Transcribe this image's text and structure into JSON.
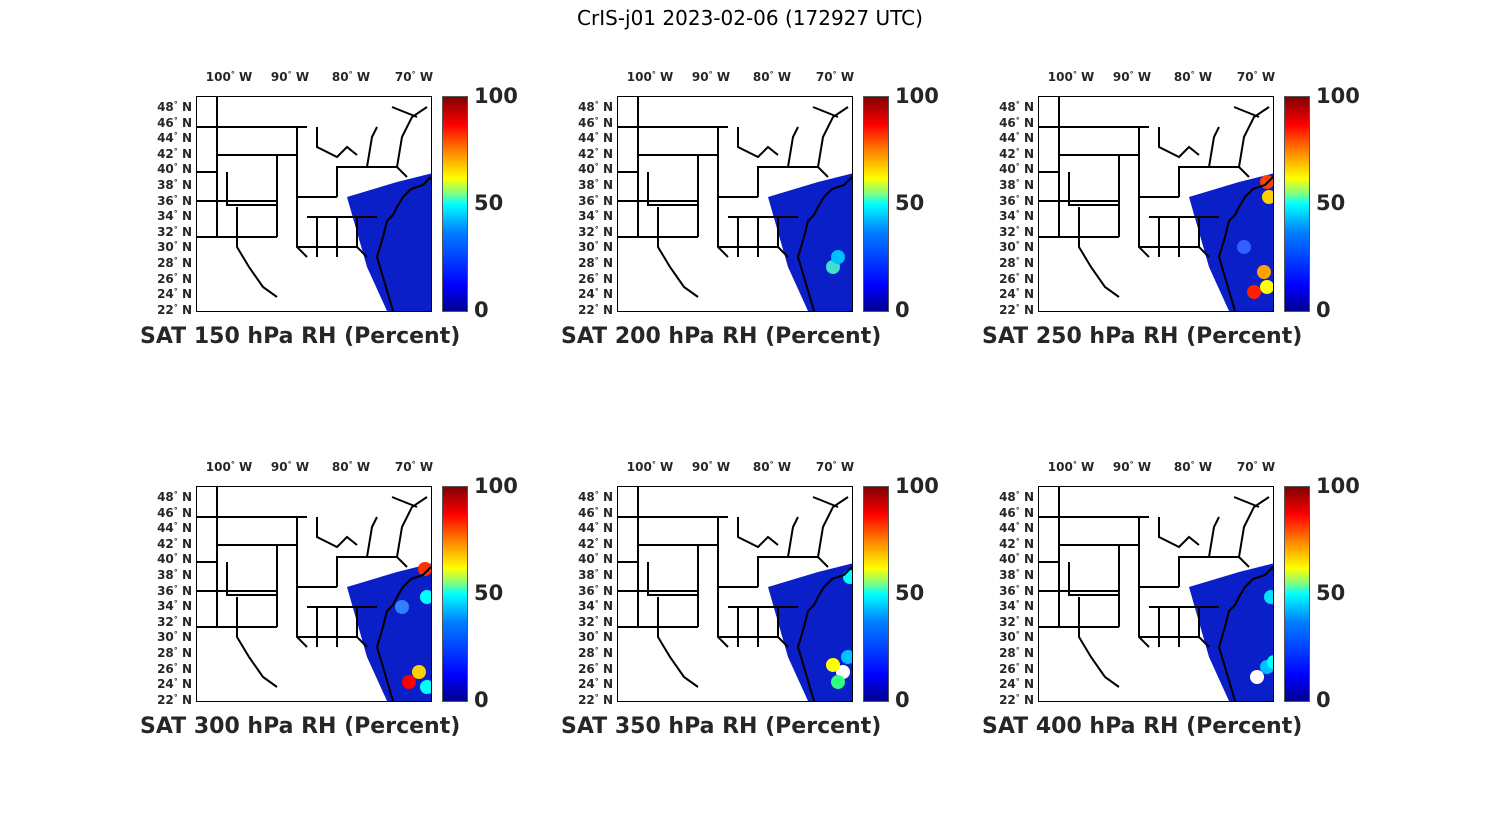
{
  "figure_title": "CrIS-j01 2023-02-06 (172927 UTC)",
  "lon_ticks": [
    "100",
    "90",
    "80",
    "70"
  ],
  "lon_suffix": "W",
  "lat_ticks": [
    "48",
    "46",
    "44",
    "42",
    "40",
    "38",
    "36",
    "34",
    "32",
    "30",
    "28",
    "26",
    "24",
    "22"
  ],
  "lat_suffix": "N",
  "colorbar_ticks": [
    "100",
    "50",
    "0"
  ],
  "colormap": "jet",
  "panels": [
    {
      "title": "SAT 150 hPa RH (Percent)",
      "level_hpa": 150,
      "dominant_rh": "0-10"
    },
    {
      "title": "SAT 200 hPa RH (Percent)",
      "level_hpa": 200,
      "dominant_rh": "0-15"
    },
    {
      "title": "SAT 250 hPa RH (Percent)",
      "level_hpa": 250,
      "dominant_rh": "0-20"
    },
    {
      "title": "SAT 300 hPa RH (Percent)",
      "level_hpa": 300,
      "dominant_rh": "0-20"
    },
    {
      "title": "SAT 350 hPa RH (Percent)",
      "level_hpa": 350,
      "dominant_rh": "0-25"
    },
    {
      "title": "SAT 400 hPa RH (Percent)",
      "level_hpa": 400,
      "dominant_rh": "0-15"
    }
  ]
}
